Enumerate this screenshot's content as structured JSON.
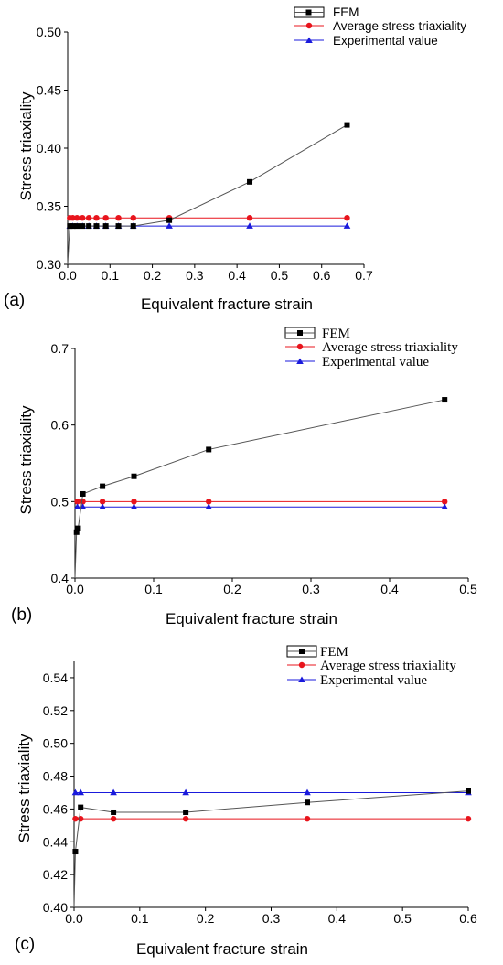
{
  "chart_data": [
    {
      "type": "line",
      "panel_label": "(a)",
      "xlabel": "Equivalent fracture strain",
      "ylabel": "Stress triaxiality",
      "xlim": [
        0,
        0.7
      ],
      "ylim": [
        0.3,
        0.5
      ],
      "xticks": [
        "0.0",
        "0.1",
        "0.2",
        "0.3",
        "0.4",
        "0.5",
        "0.6",
        "0.7"
      ],
      "yticks": [
        "0.30",
        "0.35",
        "0.40",
        "0.45",
        "0.50"
      ],
      "legend_position": "top-right",
      "series": [
        {
          "name": "FEM",
          "color": "#000000",
          "line_color": "#555555",
          "marker": "square",
          "x": [
            0.005,
            0.012,
            0.022,
            0.035,
            0.05,
            0.068,
            0.09,
            0.12,
            0.155,
            0.24,
            0.43,
            0.66
          ],
          "y": [
            0.333,
            0.333,
            0.333,
            0.333,
            0.333,
            0.333,
            0.333,
            0.333,
            0.333,
            0.338,
            0.371,
            0.42
          ]
        },
        {
          "name": "Average stress triaxiality",
          "color": "#e8141c",
          "line_color": "#e8141c",
          "marker": "circle",
          "x": [
            0.005,
            0.012,
            0.022,
            0.035,
            0.05,
            0.068,
            0.09,
            0.12,
            0.155,
            0.24,
            0.43,
            0.66
          ],
          "y": [
            0.34,
            0.34,
            0.34,
            0.34,
            0.34,
            0.34,
            0.34,
            0.34,
            0.34,
            0.34,
            0.34,
            0.34
          ]
        },
        {
          "name": "Experimental value",
          "color": "#1a1adc",
          "line_color": "#1a1adc",
          "marker": "triangle",
          "x": [
            0.005,
            0.012,
            0.022,
            0.035,
            0.05,
            0.068,
            0.09,
            0.12,
            0.155,
            0.24,
            0.43,
            0.66
          ],
          "y": [
            0.333,
            0.333,
            0.333,
            0.333,
            0.333,
            0.333,
            0.333,
            0.333,
            0.333,
            0.333,
            0.333,
            0.333
          ]
        }
      ],
      "extra_segments": [
        {
          "x": [
            0.0,
            0.005
          ],
          "y": [
            0.3,
            0.333
          ],
          "color": "#555555"
        }
      ]
    },
    {
      "type": "line",
      "panel_label": "(b)",
      "xlabel": "Equivalent fracture strain",
      "ylabel": "Stress triaxiality",
      "xlim": [
        0,
        0.5
      ],
      "ylim": [
        0.4,
        0.7
      ],
      "xticks": [
        "0.0",
        "0.1",
        "0.2",
        "0.3",
        "0.4",
        "0.5"
      ],
      "yticks": [
        "0.4",
        "0.5",
        "0.6",
        "0.7"
      ],
      "legend_position": "top-right",
      "series": [
        {
          "name": "FEM",
          "color": "#000000",
          "line_color": "#555555",
          "marker": "square",
          "x": [
            0.002,
            0.004,
            0.01,
            0.035,
            0.075,
            0.17,
            0.47
          ],
          "y": [
            0.46,
            0.465,
            0.51,
            0.52,
            0.533,
            0.568,
            0.633
          ]
        },
        {
          "name": "Average stress triaxiality",
          "color": "#e8141c",
          "line_color": "#e8141c",
          "marker": "circle",
          "x": [
            0.003,
            0.01,
            0.035,
            0.075,
            0.17,
            0.47
          ],
          "y": [
            0.5,
            0.5,
            0.5,
            0.5,
            0.5,
            0.5
          ]
        },
        {
          "name": "Experimental value",
          "color": "#1a1adc",
          "line_color": "#1a1adc",
          "marker": "triangle",
          "x": [
            0.003,
            0.01,
            0.035,
            0.075,
            0.17,
            0.47
          ],
          "y": [
            0.493,
            0.493,
            0.493,
            0.493,
            0.493,
            0.493
          ]
        }
      ],
      "extra_segments": [
        {
          "x": [
            0.0,
            0.002
          ],
          "y": [
            0.4,
            0.46
          ],
          "color": "#555555"
        }
      ]
    },
    {
      "type": "line",
      "panel_label": "(c)",
      "xlabel": "Equivalent fracture strain",
      "ylabel": "Stress triaxiality",
      "xlim": [
        0,
        0.6
      ],
      "ylim": [
        0.4,
        0.55
      ],
      "xticks": [
        "0.0",
        "0.1",
        "0.2",
        "0.3",
        "0.4",
        "0.5",
        "0.6"
      ],
      "yticks": [
        "0.40",
        "0.42",
        "0.44",
        "0.46",
        "0.48",
        "0.50",
        "0.52",
        "0.54"
      ],
      "legend_position": "top-right",
      "series": [
        {
          "name": "FEM",
          "color": "#000000",
          "line_color": "#555555",
          "marker": "square",
          "x": [
            0.002,
            0.01,
            0.06,
            0.17,
            0.355,
            0.6
          ],
          "y": [
            0.434,
            0.461,
            0.458,
            0.458,
            0.464,
            0.471
          ]
        },
        {
          "name": "Average stress triaxiality",
          "color": "#e8141c",
          "line_color": "#e8141c",
          "marker": "circle",
          "x": [
            0.002,
            0.01,
            0.06,
            0.17,
            0.355,
            0.6
          ],
          "y": [
            0.454,
            0.454,
            0.454,
            0.454,
            0.454,
            0.454
          ]
        },
        {
          "name": "Experimental value",
          "color": "#1a1adc",
          "line_color": "#1a1adc",
          "marker": "triangle",
          "x": [
            0.002,
            0.01,
            0.06,
            0.17,
            0.355,
            0.6
          ],
          "y": [
            0.47,
            0.47,
            0.47,
            0.47,
            0.47,
            0.47
          ]
        }
      ],
      "extra_segments": [
        {
          "x": [
            0.0,
            0.002
          ],
          "y": [
            0.4,
            0.434
          ],
          "color": "#555555"
        }
      ]
    }
  ]
}
